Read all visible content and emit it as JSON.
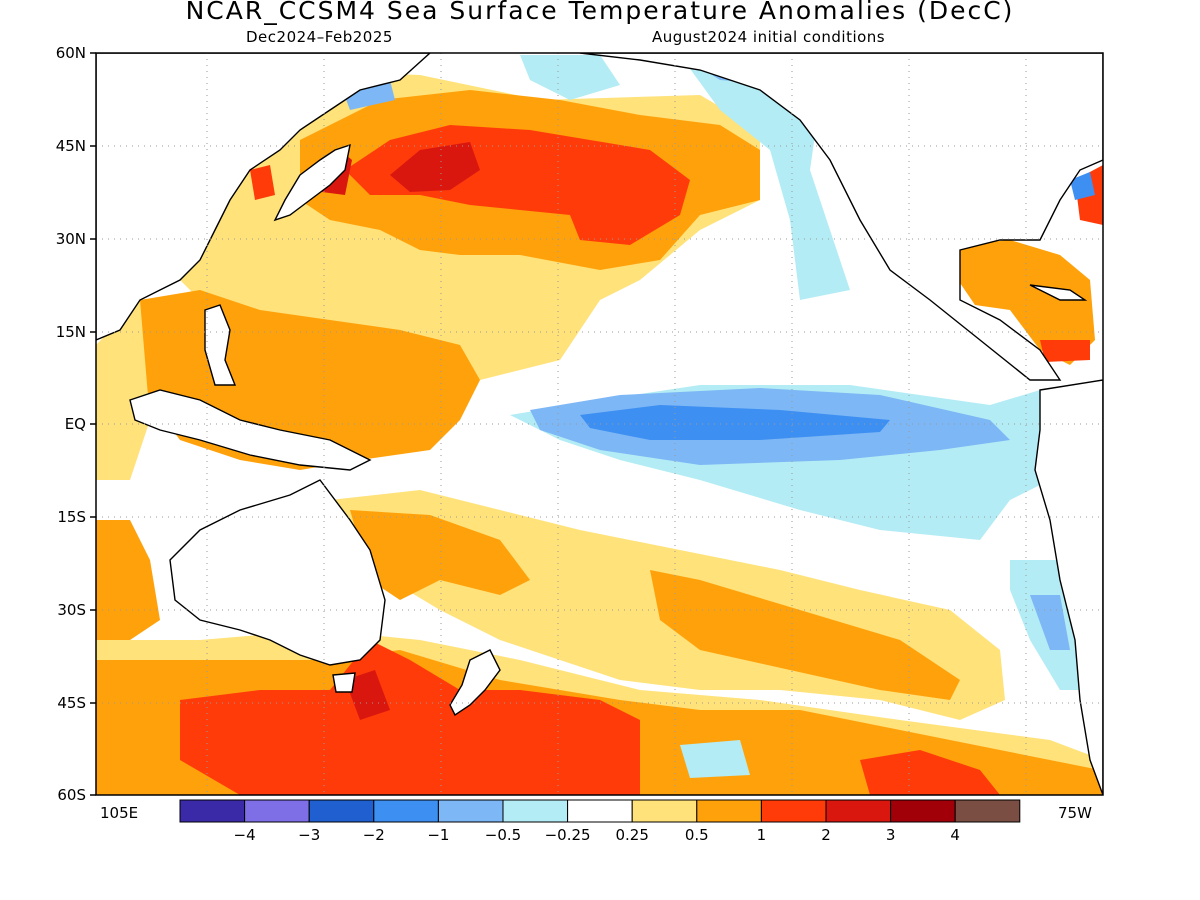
{
  "header": {
    "title": "NCAR_CCSM4 Sea Surface Temperature Anomalies (DecC)",
    "period": "Dec2024–Feb2025",
    "initial_conditions": "August2024 initial conditions"
  },
  "axes": {
    "lat_labels": [
      "60N",
      "45N",
      "30N",
      "15N",
      "EQ",
      "15S",
      "30S",
      "45S",
      "60S"
    ],
    "lon_left": "105E",
    "lon_right": "75W"
  },
  "colorbar": {
    "levels": [
      "−4",
      "−3",
      "−2",
      "−1",
      "−0.5",
      "−0.25",
      "0.25",
      "0.5",
      "1",
      "2",
      "3",
      "4"
    ],
    "colors": [
      "#3a2aa8",
      "#7f6fe6",
      "#1f5fd0",
      "#3d8ff2",
      "#7db7f5",
      "#b3ecf5",
      "#ffffff",
      "#ffe27a",
      "#ffa10a",
      "#ff3b0a",
      "#d9170f",
      "#a10008",
      "#7a4e42"
    ]
  },
  "regions": {
    "countries": [
      "Australia",
      "New Zealand",
      "Tasmania",
      "Japan",
      "Philippines",
      "Indonesia",
      "North America",
      "South America"
    ],
    "anomaly_features": [
      {
        "name": "equatorial-cold-tongue",
        "category": "-2 to -1"
      },
      {
        "name": "north-pacific-warm-blob",
        "category": "1 to 3"
      },
      {
        "name": "southern-ocean-warm-band",
        "category": "1 to 3"
      }
    ]
  }
}
